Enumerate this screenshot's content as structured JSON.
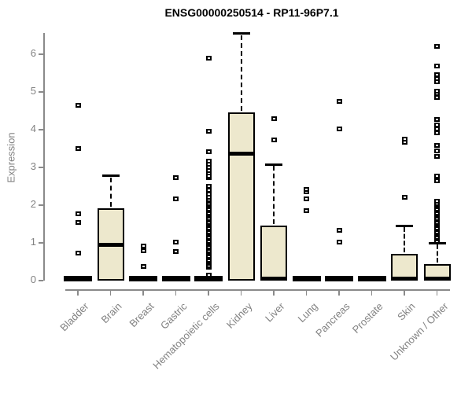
{
  "title": "ENSG00000250514 - RP11-96P7.1",
  "colors": {
    "background": "#ffffff",
    "box_fill": "#ede8cd",
    "box_stroke": "#000000",
    "axis_line": "#8a8a8a",
    "axis_text": "#828282",
    "title_text": "#000000"
  },
  "chart_data": {
    "type": "boxplot",
    "title": "ENSG00000250514 - RP11-96P7.1",
    "xlabel": "",
    "ylabel": "Expression",
    "ylim": [
      0,
      6.6
    ],
    "y_ticks": [
      0,
      1,
      2,
      3,
      4,
      5,
      6
    ],
    "grid": false,
    "legend": "none",
    "categories": [
      "Bladder",
      "Brain",
      "Breast",
      "Gastric",
      "Hematopoietic cells",
      "Kidney",
      "Liver",
      "Lung",
      "Pancreas",
      "Prostate",
      "Skin",
      "Unknown / Other"
    ],
    "series": [
      {
        "name": "Bladder",
        "q1": 0,
        "median": 0,
        "q3": 0,
        "whisker_low": 0,
        "whisker_high": 0,
        "outliers": [
          0.73,
          1.55,
          1.77,
          3.5,
          4.65
        ]
      },
      {
        "name": "Brain",
        "q1": 0,
        "median": 0.95,
        "q3": 1.92,
        "whisker_low": 0,
        "whisker_high": 2.78,
        "outliers": []
      },
      {
        "name": "Breast",
        "q1": 0,
        "median": 0,
        "q3": 0,
        "whisker_low": 0,
        "whisker_high": 0,
        "outliers": [
          0.38,
          0.8,
          0.92
        ]
      },
      {
        "name": "Gastric",
        "q1": 0,
        "median": 0,
        "q3": 0,
        "whisker_low": 0,
        "whisker_high": 0,
        "outliers": [
          0.77,
          1.03,
          2.17,
          2.73
        ]
      },
      {
        "name": "Hematopoietic cells",
        "q1": 0,
        "median": 0,
        "q3": 0,
        "whisker_low": 0,
        "whisker_high": 0,
        "outliers": [
          0.14,
          0.35,
          0.4,
          0.45,
          0.5,
          0.55,
          0.6,
          0.65,
          0.7,
          0.75,
          0.8,
          0.85,
          0.9,
          0.95,
          1.0,
          1.05,
          1.1,
          1.15,
          1.2,
          1.25,
          1.3,
          1.35,
          1.4,
          1.45,
          1.5,
          1.55,
          1.6,
          1.65,
          1.7,
          1.75,
          1.8,
          1.85,
          1.9,
          1.95,
          2.0,
          2.05,
          2.1,
          2.15,
          2.2,
          2.3,
          2.4,
          2.5,
          2.72,
          2.78,
          2.85,
          2.92,
          3.0,
          3.08,
          3.16,
          3.41,
          3.96,
          5.9
        ]
      },
      {
        "name": "Kidney",
        "q1": 0,
        "median": 3.37,
        "q3": 4.45,
        "whisker_low": 0,
        "whisker_high": 6.55,
        "outliers": []
      },
      {
        "name": "Liver",
        "q1": 0,
        "median": 0,
        "q3": 1.45,
        "whisker_low": 0,
        "whisker_high": 3.08,
        "outliers": [
          3.72,
          4.3
        ]
      },
      {
        "name": "Lung",
        "q1": 0,
        "median": 0,
        "q3": 0,
        "whisker_low": 0,
        "whisker_high": 0,
        "outliers": [
          1.85,
          2.17,
          2.35,
          2.42
        ]
      },
      {
        "name": "Pancreas",
        "q1": 0,
        "median": 0,
        "q3": 0,
        "whisker_low": 0,
        "whisker_high": 0,
        "outliers": [
          1.03,
          1.33,
          4.03,
          4.75
        ]
      },
      {
        "name": "Prostate",
        "q1": 0,
        "median": 0,
        "q3": 0,
        "whisker_low": 0,
        "whisker_high": 0,
        "outliers": []
      },
      {
        "name": "Skin",
        "q1": 0,
        "median": 0,
        "q3": 0.7,
        "whisker_low": 0,
        "whisker_high": 1.45,
        "outliers": [
          2.2,
          3.66,
          3.75
        ]
      },
      {
        "name": "Unknown / Other",
        "q1": 0,
        "median": 0,
        "q3": 0.43,
        "whisker_low": 0,
        "whisker_high": 1.0,
        "outliers": [
          1.05,
          1.1,
          1.15,
          1.2,
          1.25,
          1.3,
          1.35,
          1.4,
          1.45,
          1.5,
          1.55,
          1.6,
          1.65,
          1.7,
          1.75,
          1.8,
          1.85,
          1.9,
          1.95,
          2.0,
          2.05,
          2.1,
          2.65,
          2.78,
          3.3,
          3.43,
          3.58,
          3.92,
          4.02,
          4.12,
          4.27,
          4.85,
          4.95,
          5.02,
          5.28,
          5.35,
          5.46,
          5.68,
          6.2
        ]
      }
    ]
  }
}
